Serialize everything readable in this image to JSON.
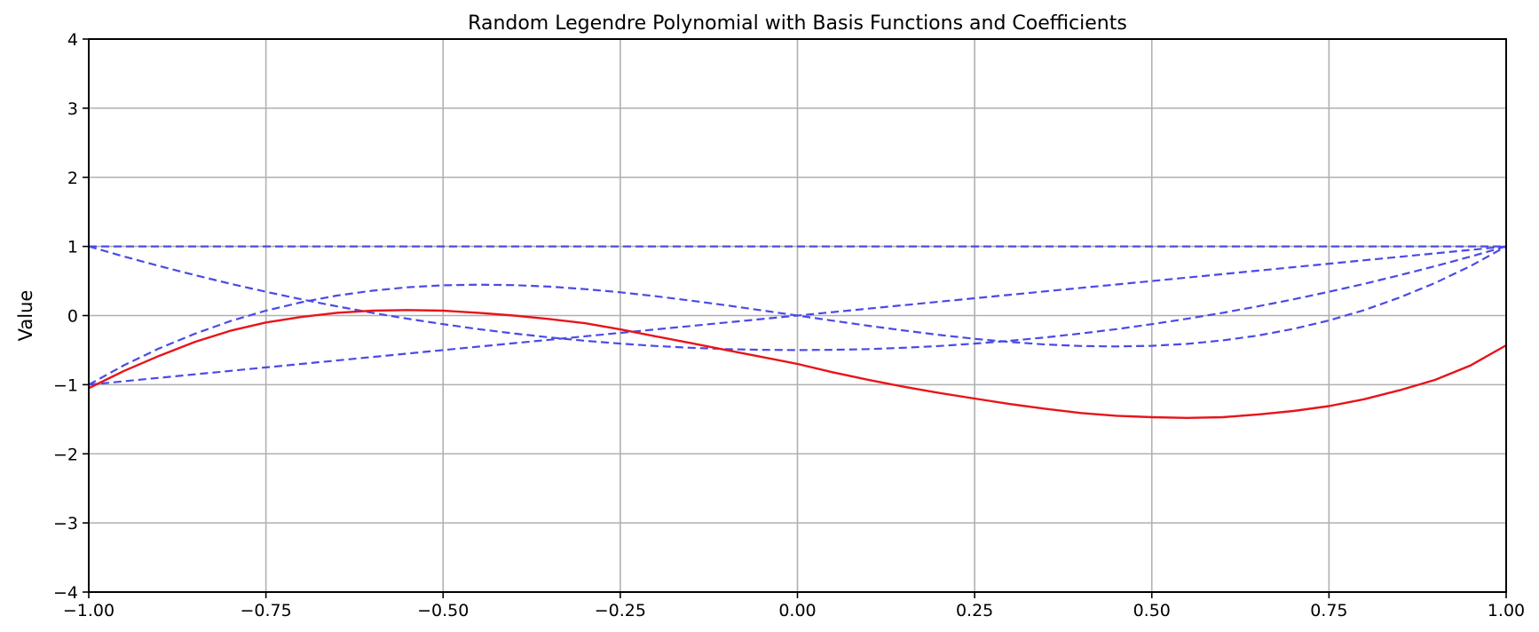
{
  "chart_data": {
    "type": "line",
    "title": "Random Legendre Polynomial with Basis Functions and Coefficients",
    "xlabel": "",
    "ylabel": "Value",
    "xlim": [
      -1.0,
      1.0
    ],
    "ylim": [
      -4,
      4
    ],
    "grid": true,
    "xticks": [
      -1.0,
      -0.75,
      -0.5,
      -0.25,
      0.0,
      0.25,
      0.5,
      0.75,
      1.0
    ],
    "xtick_labels": [
      "−1.00",
      "−0.75",
      "−0.50",
      "−0.25",
      "0.00",
      "0.25",
      "0.50",
      "0.75",
      "1.00"
    ],
    "yticks": [
      -4,
      -3,
      -2,
      -1,
      0,
      1,
      2,
      3,
      4
    ],
    "ytick_labels": [
      "−4",
      "−3",
      "−2",
      "−1",
      "0",
      "1",
      "2",
      "3",
      "4"
    ],
    "x": [
      -1.0,
      -0.95,
      -0.9,
      -0.85,
      -0.8,
      -0.75,
      -0.7,
      -0.65,
      -0.6,
      -0.55,
      -0.5,
      -0.45,
      -0.4,
      -0.35,
      -0.3,
      -0.25,
      -0.2,
      -0.15,
      -0.1,
      -0.05,
      0.0,
      0.05,
      0.1,
      0.15,
      0.2,
      0.25,
      0.3,
      0.35,
      0.4,
      0.45,
      0.5,
      0.55,
      0.6,
      0.65,
      0.7,
      0.75,
      0.8,
      0.85,
      0.9,
      0.95,
      1.0
    ],
    "series": [
      {
        "name": "",
        "style": "dashed",
        "color": "#4a4ae8",
        "y": [
          1,
          1,
          1,
          1,
          1,
          1,
          1,
          1,
          1,
          1,
          1,
          1,
          1,
          1,
          1,
          1,
          1,
          1,
          1,
          1,
          1,
          1,
          1,
          1,
          1,
          1,
          1,
          1,
          1,
          1,
          1,
          1,
          1,
          1,
          1,
          1,
          1,
          1,
          1,
          1,
          1
        ]
      },
      {
        "name": "",
        "style": "dashed",
        "color": "#4a4ae8",
        "y": [
          -1.0,
          -0.95,
          -0.9,
          -0.85,
          -0.8,
          -0.75,
          -0.7,
          -0.65,
          -0.6,
          -0.55,
          -0.5,
          -0.45,
          -0.4,
          -0.35,
          -0.3,
          -0.25,
          -0.2,
          -0.15,
          -0.1,
          -0.05,
          0.0,
          0.05,
          0.1,
          0.15,
          0.2,
          0.25,
          0.3,
          0.35,
          0.4,
          0.45,
          0.5,
          0.55,
          0.6,
          0.65,
          0.7,
          0.75,
          0.8,
          0.85,
          0.9,
          0.95,
          1.0
        ]
      },
      {
        "name": "",
        "style": "dashed",
        "color": "#4a4ae8",
        "y": [
          1.0,
          0.854,
          0.715,
          0.584,
          0.46,
          0.344,
          0.235,
          0.134,
          0.04,
          -0.046,
          -0.125,
          -0.196,
          -0.26,
          -0.316,
          -0.365,
          -0.406,
          -0.44,
          -0.466,
          -0.485,
          -0.496,
          -0.5,
          -0.496,
          -0.485,
          -0.466,
          -0.44,
          -0.406,
          -0.365,
          -0.316,
          -0.26,
          -0.196,
          -0.125,
          -0.046,
          0.04,
          0.134,
          0.235,
          0.344,
          0.46,
          0.584,
          0.715,
          0.854,
          1.0
        ]
      },
      {
        "name": "",
        "style": "dashed",
        "color": "#4a4ae8",
        "y": [
          -1.0,
          -0.718,
          -0.473,
          -0.262,
          -0.08,
          0.07,
          0.193,
          0.289,
          0.36,
          0.409,
          0.438,
          0.447,
          0.44,
          0.418,
          0.383,
          0.336,
          0.28,
          0.216,
          0.148,
          0.075,
          0.0,
          -0.075,
          -0.148,
          -0.216,
          -0.28,
          -0.336,
          -0.383,
          -0.418,
          -0.44,
          -0.447,
          -0.438,
          -0.409,
          -0.36,
          -0.289,
          -0.193,
          -0.07,
          0.08,
          0.262,
          0.473,
          0.718,
          1.0
        ]
      },
      {
        "name": "",
        "style": "solid",
        "color": "#e8141a",
        "y": [
          -1.05,
          -0.8,
          -0.58,
          -0.38,
          -0.22,
          -0.1,
          -0.02,
          0.04,
          0.07,
          0.08,
          0.07,
          0.04,
          0.0,
          -0.05,
          -0.11,
          -0.2,
          -0.3,
          -0.4,
          -0.5,
          -0.6,
          -0.7,
          -0.82,
          -0.93,
          -1.03,
          -1.12,
          -1.2,
          -1.28,
          -1.35,
          -1.41,
          -1.45,
          -1.47,
          -1.48,
          -1.47,
          -1.43,
          -1.38,
          -1.31,
          -1.21,
          -1.08,
          -0.93,
          -0.72,
          -0.43
        ]
      }
    ]
  }
}
